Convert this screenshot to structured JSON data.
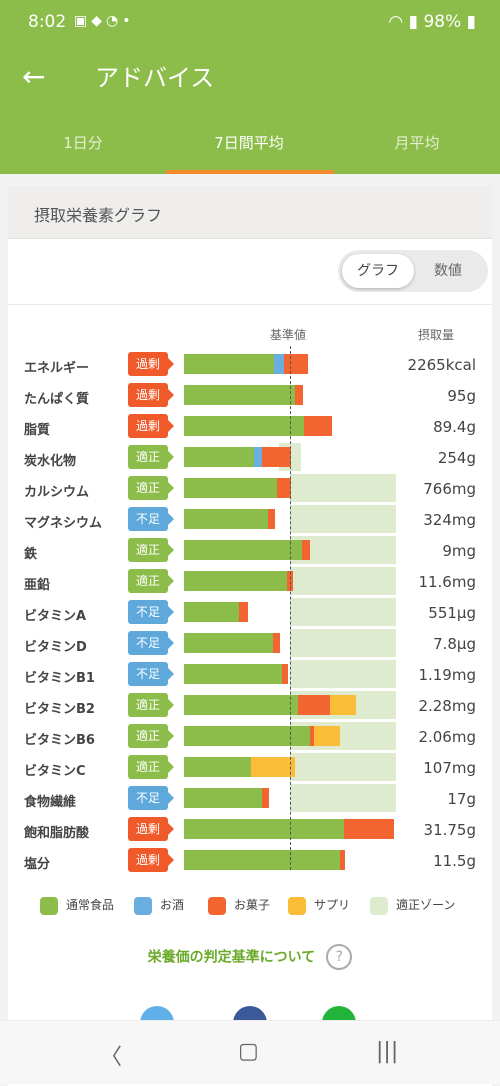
{
  "status": {
    "time": "8:02",
    "battery": "98%"
  },
  "header": {
    "title": "アドバイス"
  },
  "tabs": [
    {
      "label": "1日分",
      "active": false
    },
    {
      "label": "7日間平均",
      "active": true
    },
    {
      "label": "月平均",
      "active": false
    }
  ],
  "card": {
    "title": "摂取栄養素グラフ",
    "toggle": {
      "graph": "グラフ",
      "values": "数値"
    },
    "col_base": "基準値",
    "col_intake": "摂取量"
  },
  "nutrients": [
    {
      "name": "エネルギー",
      "status": "過剰",
      "status_type": "over",
      "value": "2265kcal",
      "zone": [
        1.0,
        1.0
      ],
      "parts": {
        "food": 0.85,
        "alcohol": 0.09,
        "snack": 0.23,
        "supp": 0
      }
    },
    {
      "name": "たんぱく質",
      "status": "過剰",
      "status_type": "over",
      "value": "95g",
      "zone": [
        1.0,
        1.0
      ],
      "parts": {
        "food": 1.05,
        "alcohol": 0,
        "snack": 0.07,
        "supp": 0
      }
    },
    {
      "name": "脂質",
      "status": "過剰",
      "status_type": "over",
      "value": "89.4g",
      "zone": [
        1.0,
        1.0
      ],
      "parts": {
        "food": 1.13,
        "alcohol": 0,
        "snack": 0.27,
        "supp": 0
      }
    },
    {
      "name": "炭水化物",
      "status": "適正",
      "status_type": "ok",
      "value": "254g",
      "zone": [
        0.9,
        1.1
      ],
      "parts": {
        "food": 0.66,
        "alcohol": 0.08,
        "snack": 0.27,
        "supp": 0
      }
    },
    {
      "name": "カルシウム",
      "status": "適正",
      "status_type": "ok",
      "value": "766mg",
      "zone": [
        1.0,
        2.0
      ],
      "parts": {
        "food": 0.88,
        "alcohol": 0,
        "snack": 0.13,
        "supp": 0
      }
    },
    {
      "name": "マグネシウム",
      "status": "不足",
      "status_type": "low",
      "value": "324mg",
      "zone": [
        1.0,
        2.0
      ],
      "parts": {
        "food": 0.79,
        "alcohol": 0,
        "snack": 0.07,
        "supp": 0
      }
    },
    {
      "name": "鉄",
      "status": "適正",
      "status_type": "ok",
      "value": "9mg",
      "zone": [
        1.0,
        2.0
      ],
      "parts": {
        "food": 1.11,
        "alcohol": 0,
        "snack": 0.08,
        "supp": 0
      }
    },
    {
      "name": "亜鉛",
      "status": "適正",
      "status_type": "ok",
      "value": "11.6mg",
      "zone": [
        1.0,
        2.0
      ],
      "parts": {
        "food": 0.97,
        "alcohol": 0,
        "snack": 0.06,
        "supp": 0
      }
    },
    {
      "name": "ビタミンA",
      "status": "不足",
      "status_type": "low",
      "value": "551μg",
      "zone": [
        1.0,
        2.0
      ],
      "parts": {
        "food": 0.52,
        "alcohol": 0,
        "snack": 0.08,
        "supp": 0
      }
    },
    {
      "name": "ビタミンD",
      "status": "不足",
      "status_type": "low",
      "value": "7.8μg",
      "zone": [
        1.0,
        2.0
      ],
      "parts": {
        "food": 0.84,
        "alcohol": 0,
        "snack": 0.07,
        "supp": 0
      }
    },
    {
      "name": "ビタミンB1",
      "status": "不足",
      "status_type": "low",
      "value": "1.19mg",
      "zone": [
        1.0,
        2.0
      ],
      "parts": {
        "food": 0.92,
        "alcohol": 0,
        "snack": 0.06,
        "supp": 0
      }
    },
    {
      "name": "ビタミンB2",
      "status": "適正",
      "status_type": "ok",
      "value": "2.28mg",
      "zone": [
        1.0,
        2.0
      ],
      "parts": {
        "food": 1.08,
        "alcohol": 0,
        "snack": 0.3,
        "supp": 0.24
      }
    },
    {
      "name": "ビタミンB6",
      "status": "適正",
      "status_type": "ok",
      "value": "2.06mg",
      "zone": [
        1.0,
        2.0
      ],
      "parts": {
        "food": 1.19,
        "alcohol": 0,
        "snack": 0.04,
        "supp": 0.24
      }
    },
    {
      "name": "ビタミンC",
      "status": "適正",
      "status_type": "ok",
      "value": "107mg",
      "zone": [
        1.0,
        2.0
      ],
      "parts": {
        "food": 0.63,
        "alcohol": 0,
        "snack": 0,
        "supp": 0.42
      }
    },
    {
      "name": "食物繊維",
      "status": "不足",
      "status_type": "low",
      "value": "17g",
      "zone": [
        1.0,
        2.0
      ],
      "parts": {
        "food": 0.74,
        "alcohol": 0,
        "snack": 0.06,
        "supp": 0
      }
    },
    {
      "name": "飽和脂肪酸",
      "status": "過剰",
      "status_type": "over",
      "value": "31.75g",
      "zone": [
        0,
        0
      ],
      "parts": {
        "food": 1.51,
        "alcohol": 0,
        "snack": 0.47,
        "supp": 0
      }
    },
    {
      "name": "塩分",
      "status": "過剰",
      "status_type": "over",
      "value": "11.5g",
      "zone": [
        0,
        0
      ],
      "parts": {
        "food": 1.47,
        "alcohol": 0,
        "snack": 0.05,
        "supp": 0
      }
    }
  ],
  "legend": [
    {
      "label": "通常食品",
      "color": "#8cbd4a"
    },
    {
      "label": "お酒",
      "color": "#6aaedf"
    },
    {
      "label": "お菓子",
      "color": "#f26530"
    },
    {
      "label": "サプリ",
      "color": "#fbbd38"
    },
    {
      "label": "適正ゾーン",
      "color": "#deebcf"
    }
  ],
  "criteria_link": "栄養価の判定基準について",
  "help_icon": "?"
}
